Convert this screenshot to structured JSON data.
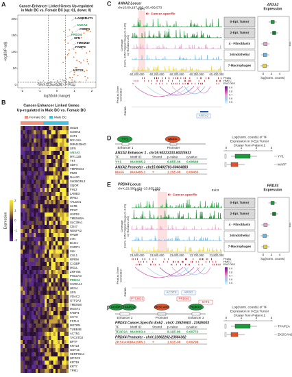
{
  "A": {
    "label": "A",
    "title": [
      "Cancer-Enhancer Linked Genes Up-regulated",
      "in Male BC vs. Female BC (up: 61, down: 0)"
    ],
    "ylabel": "-log10(P-adj)",
    "xlabel": "log2(fold change)",
    "yticks": [
      "0",
      "50",
      "100",
      "150",
      "200"
    ],
    "xticks": [
      "-2",
      "-1",
      "0",
      "1",
      "2"
    ],
    "genes": [
      "LAMB3",
      "SAT1",
      "ANXA2",
      "CSRP1",
      "PRDX4",
      "SFN",
      "TMEM40",
      "FABP3",
      "KRT23"
    ]
  },
  "B": {
    "label": "B",
    "title": [
      "Cancer-Enhancer Linked Genes",
      "Up-regulated in Male BC vs. Female BC"
    ],
    "legend": [
      "Female BC",
      "Male BC"
    ],
    "colorbar_title": "Expression",
    "colorbar_ticks": [
      "2",
      "1",
      "0",
      "-1",
      "-2"
    ],
    "genes": [
      "ISG20",
      "S100A6",
      "SAT1",
      "MYL12A",
      "MIR4435HG",
      "SFN",
      "ANXA2",
      "MYL12B",
      "TKT",
      "SDF4",
      "TMPRSS4",
      "PIM3",
      "NAA20",
      "SH3BGRL3",
      "SQOR",
      "FHL2",
      "LAMB3",
      "MFN2",
      "TALDO1",
      "CLTB",
      "PFKP",
      "USP53",
      "TMEM45A",
      "SLC39A1",
      "CD47",
      "NDUFV2",
      "PAWR",
      "LYN",
      "BAG1",
      "CSRP1",
      "SLK",
      "CUL1",
      "RPRM",
      "C1QBP",
      "MGLL",
      "ZNF706",
      "PHLDA3",
      "PRDX4",
      "S100A14",
      "HES4",
      "SFN",
      "VDAC2",
      "GTF2A2",
      "TMEM40",
      "MGST1",
      "FABP3",
      "CCT3",
      "FSTL3",
      "METRN",
      "TUBB4B",
      "ACTN1",
      "TACSTD2",
      "BPTF",
      "KRT23",
      "GDF15",
      "SERPINA1",
      "WFDC2",
      "KRT19",
      "KRT7",
      "TPM1"
    ]
  },
  "C": {
    "label": "C",
    "locus": [
      "ANXA2 Locus:",
      "chr15:60,187,482−60,409,573"
    ],
    "enh": [
      "Enh1"
    ],
    "annotation": "Cancer-specific",
    "ylabel": [
      "Coverage",
      "(Norm. ATAC Signal Range (0−0.35)",
      "by Random 150)"
    ],
    "tracks": [
      "0-Epi. Tumor",
      "2-Epi. Tumor",
      "4 - Fibroblasts",
      "3-Endothelial",
      "7-Macrophages"
    ],
    "xticks": [
      "60,200,000",
      "60,250,000",
      "60,300,000",
      "60,350,000",
      "60,400,000"
    ],
    "peaks": [
      "Peaks",
      "HMEC",
      "ENCODE"
    ],
    "p2g": [
      "Peak-to-Gene",
      "Correlation"
    ],
    "genes_label": "Genes",
    "genes": [
      "ANXA2"
    ],
    "colorbar_ticks": [
      "0.9",
      "0.8",
      "0.7",
      "0.6",
      "0.5"
    ],
    "expr_title": [
      "ANXA2",
      "Expression"
    ],
    "expr_xticks": [
      "0",
      "2",
      "4"
    ],
    "expr_xlabel": "log(norm. counts)",
    "sig": "****"
  },
  "D": {
    "label": "D",
    "nodes": [
      "YY1",
      "MAFF"
    ],
    "elements": [
      "Enhancer 1",
      "Promoter"
    ],
    "header": [
      "TF",
      "Motif ID",
      "Strand",
      "p-value",
      "q-value"
    ],
    "tables": [
      {
        "heading": "ANXA2 Enhancer 1 - chr15:60223133-60223633",
        "row": [
          "YY1",
          "MA0095.2",
          "-",
          "6.85E-06",
          "0.00649"
        ]
      },
      {
        "heading": "ANXA2 Promoter - chr15:60402783-60404883",
        "row": [
          "MAFF",
          "MA0495.3",
          "+",
          "1.25E-06",
          "0.00435"
        ]
      }
    ],
    "chart_title": [
      "Log(norm. counts) of TF",
      "Expression in 0-Epi.Tumor",
      "Cluster from Patient 2"
    ],
    "chart_xticks": [
      "0",
      "1",
      "2",
      "3"
    ],
    "legend": [
      "YY1",
      "MAFF"
    ]
  },
  "E": {
    "label": "E",
    "locus": [
      "PRDX4 Locus:",
      "chrX:23,389,429−23,855,559"
    ],
    "enh": [
      "Enh1",
      "Enh2",
      "Enh3"
    ],
    "annotation": "Cancer-specific",
    "ylabel": [
      "Coverage",
      "(Norm. ATAC Signal Range (0−0.29)",
      "by Random 150)"
    ],
    "tracks": [
      "0-Epi. Tumor",
      "2-Epi. Tumor",
      "4 - Fibroblasts",
      "3-Endothelial",
      "7-Macrophages"
    ],
    "xticks": [
      "23,400,000",
      "23,500,000",
      "23,600,000",
      "23,700,000",
      "23,800,000"
    ],
    "peaks": [
      "Peaks",
      "HMEC",
      "ENCODE"
    ],
    "p2g": [
      "Peak-to-Gene",
      "Correlation"
    ],
    "genes_label": "Genes",
    "genes": [
      "ACOT9",
      "APOO",
      "PTCHD1",
      "PRDX4",
      "SAT1"
    ],
    "colorbar_ticks": [
      "0.9",
      "0.8",
      "0.7",
      "0.6",
      "0.5"
    ],
    "expr_title": [
      "PRDX4",
      "Expression"
    ],
    "expr_xticks": [
      "0",
      "2",
      "4"
    ],
    "expr_xlabel": "log(norm. counts)",
    "sig": "****"
  },
  "F": {
    "label": "F",
    "nodes": [
      "FOXP1",
      "TFAP2A",
      "ZKSCAN1",
      "RUNX1"
    ],
    "elements": [
      "Enhancer 2",
      "Promoter",
      "Enhancer 3"
    ],
    "header": [
      "TF",
      "Motif ID",
      "Strand",
      "p-value",
      "q-value"
    ],
    "tables": [
      {
        "heading": "PRDX4 Cancer-Specific Enh2 - chrX: 23525503 - 23526003",
        "row": [
          "TFAP2A",
          "MA0003.4",
          "-",
          "8.11E-06",
          "0.00772"
        ]
      },
      {
        "heading": "PRDX4 Promoter - chrX:23662262-23664362",
        "row": [
          "ZKSCAN1",
          "MA1585.1",
          "+",
          "1.91E-06",
          "0.00798"
        ]
      }
    ],
    "chart_title": [
      "Log(norm. counts) of TF",
      "Expression in 0-Epi.Tumor",
      "Cluster from Patient 2"
    ],
    "chart_xticks": [
      "0",
      "1",
      "2",
      "3"
    ],
    "legend": [
      "TFAP2A",
      "ZKSCAN1"
    ]
  }
}
